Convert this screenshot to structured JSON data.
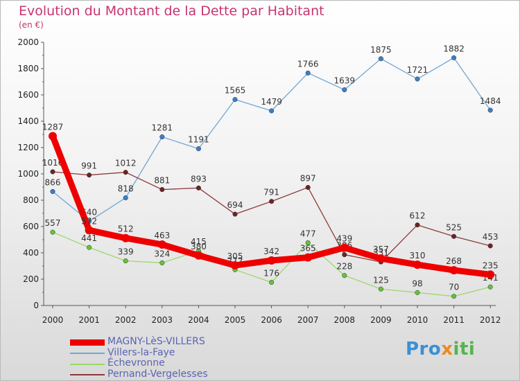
{
  "title": "Evolution du Montant de la Dette par Habitant",
  "subtitle": "(en €)",
  "logo": {
    "text": "Proxiti"
  },
  "chart_data": {
    "type": "line",
    "x": [
      "2000",
      "2001",
      "2002",
      "2003",
      "2004",
      "2005",
      "2006",
      "2007",
      "2008",
      "2009",
      "2010",
      "2011",
      "2012"
    ],
    "ylim": [
      0,
      2000
    ],
    "yticks": [
      0,
      200,
      400,
      600,
      800,
      1000,
      1200,
      1400,
      1600,
      1800,
      2000
    ],
    "grid": false,
    "legend": "bottom-left",
    "series": [
      {
        "name": "MAGNY-LèS-VILLERS",
        "color": "#ee0000",
        "emphasis": true,
        "values": [
          1287,
          572,
          512,
          463,
          380,
          305,
          342,
          365,
          439,
          357,
          310,
          268,
          235
        ]
      },
      {
        "name": "Villers-la-Faye",
        "color": "#6fa6d6",
        "marker": "#3b7fc4",
        "values": [
          866,
          640,
          818,
          1281,
          1191,
          1565,
          1479,
          1766,
          1639,
          1875,
          1721,
          1882,
          1484
        ]
      },
      {
        "name": "Échevronne",
        "color": "#9ad86a",
        "marker": "#66c23a",
        "values": [
          557,
          441,
          339,
          324,
          415,
          272,
          176,
          477,
          228,
          125,
          98,
          70,
          141
        ]
      },
      {
        "name": "Pernand-Vergelesses",
        "color": "#8b3a3a",
        "marker": "#6e2323",
        "values": [
          1016,
          991,
          1012,
          881,
          893,
          694,
          791,
          897,
          386,
          331,
          612,
          525,
          453
        ]
      }
    ]
  }
}
